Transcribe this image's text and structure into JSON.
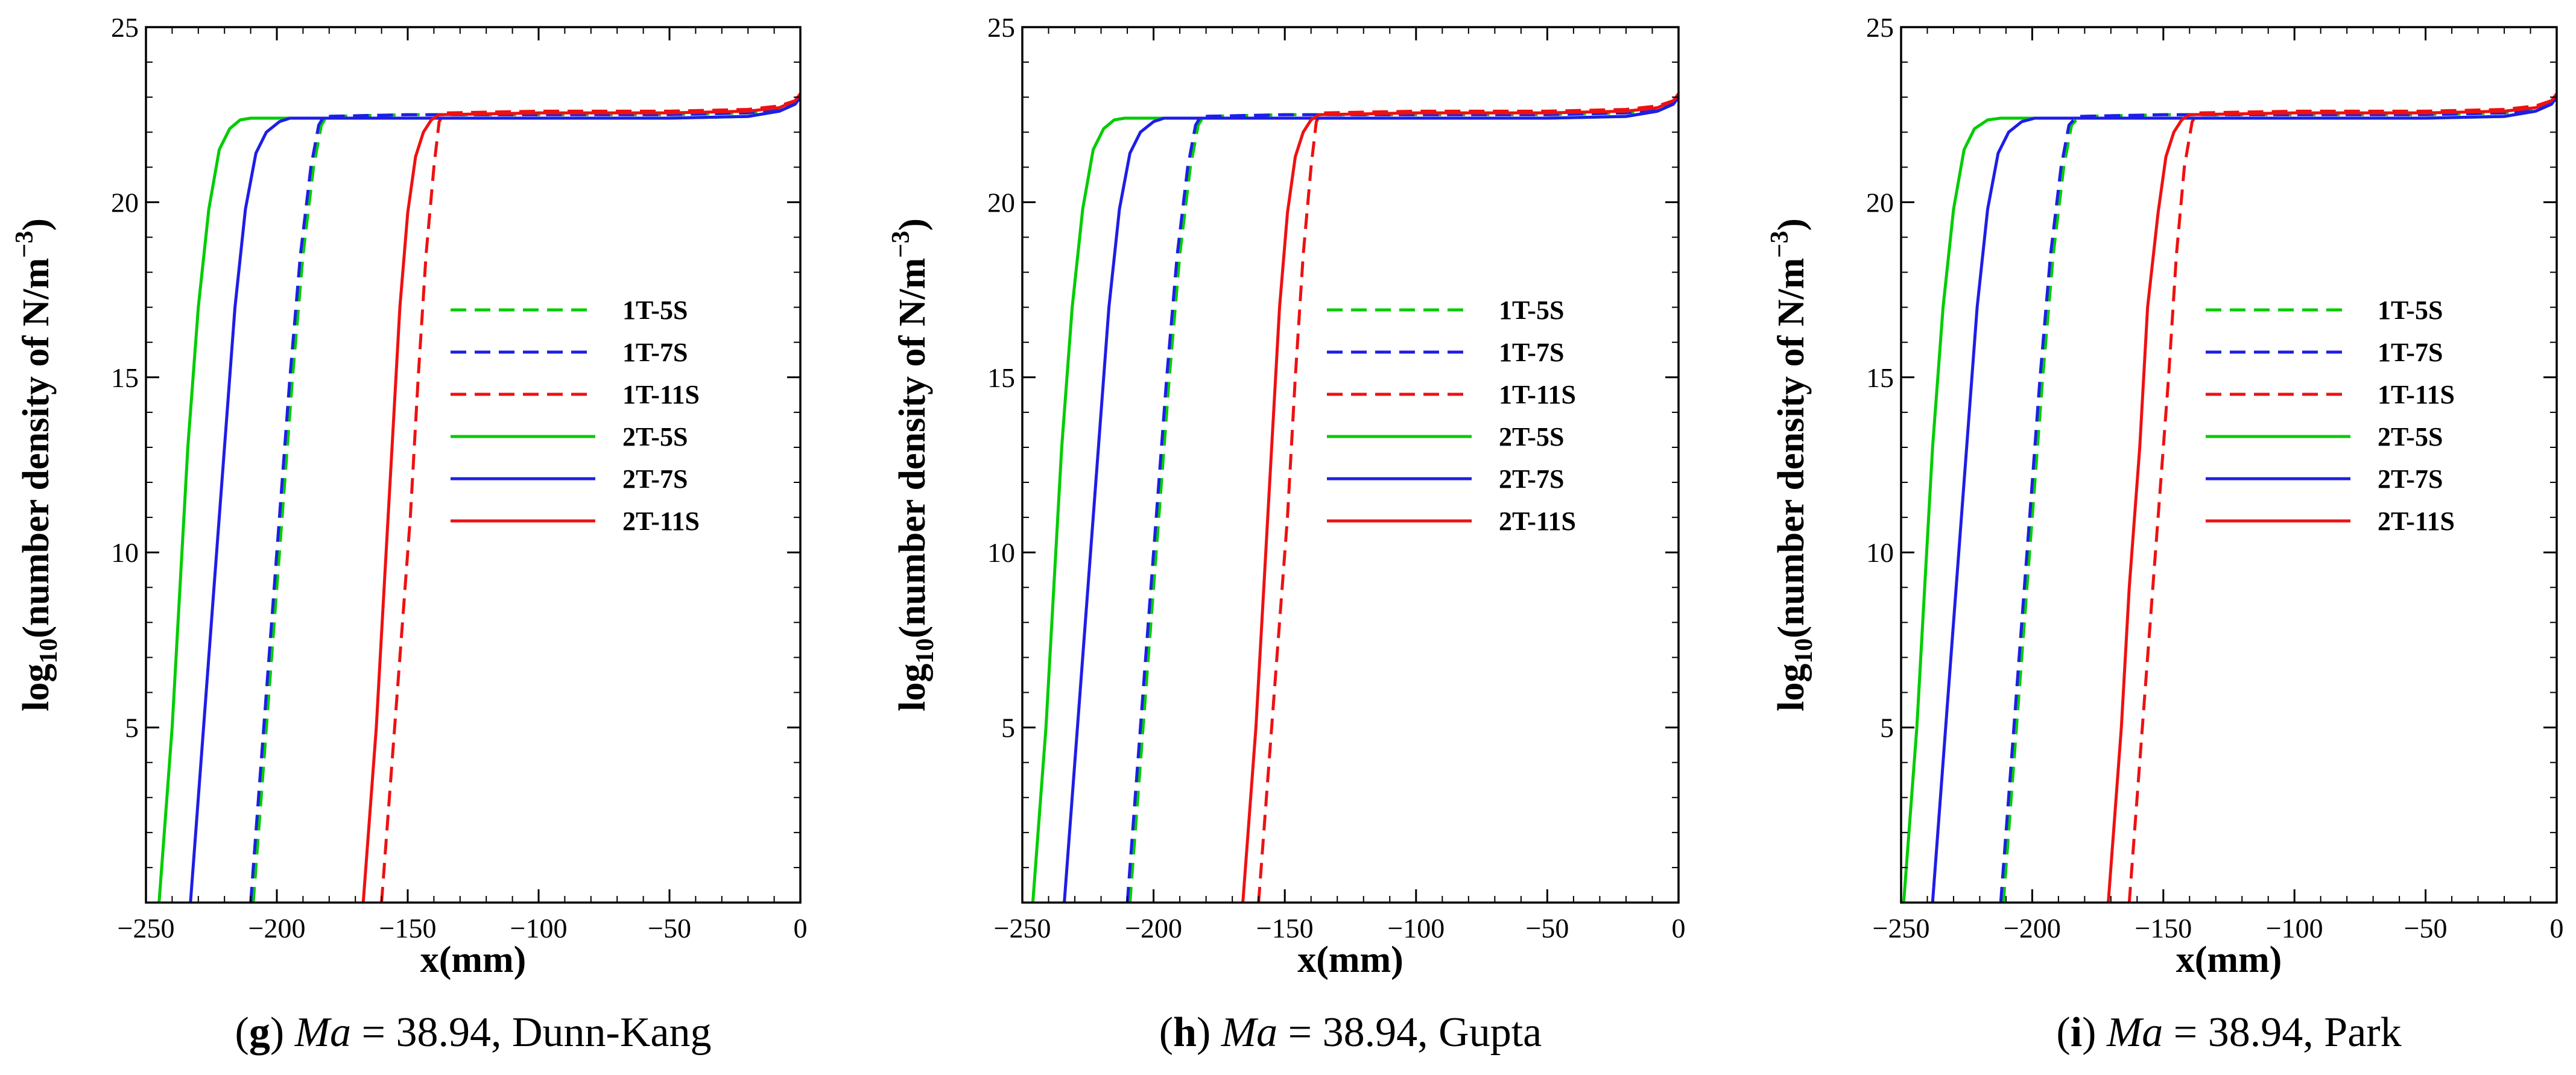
{
  "chart_data": [
    {
      "type": "line",
      "letter": "g",
      "caption_ma_symbol": "Ma",
      "caption_eq": " = 38.94, ",
      "caption_model": "Dunn-Kang",
      "xlabel": "x(mm)",
      "ylabel_prefix": "log",
      "ylabel_sub": "10",
      "ylabel_main": "(number density of N/m",
      "ylabel_sup": "−3",
      "ylabel_close": ")",
      "xlim": [
        -250,
        0
      ],
      "ylim": [
        0,
        25
      ],
      "xticks": [
        -250,
        -200,
        -150,
        -100,
        -50,
        0
      ],
      "xtick_labels": [
        "−250",
        "−200",
        "−150",
        "−100",
        "−50",
        "0"
      ],
      "yticks": [
        5,
        10,
        15,
        20,
        25
      ],
      "ytick_labels": [
        "5",
        "10",
        "15",
        "20",
        "25"
      ],
      "legend_position": "center-right",
      "series": [
        {
          "name": "1T-5S",
          "color": "#00cc00",
          "dash": "dashed",
          "x": [
            -209,
            -206,
            -202,
            -198,
            -194,
            -190,
            -186,
            -183,
            -181,
            -150,
            -100,
            -50,
            -20,
            -8,
            -2,
            0
          ],
          "y": [
            0,
            3,
            7,
            11,
            15,
            18.5,
            21,
            22.2,
            22.45,
            22.5,
            22.5,
            22.5,
            22.55,
            22.65,
            22.85,
            23.0
          ]
        },
        {
          "name": "1T-7S",
          "color": "#1e1ee6",
          "dash": "dashed",
          "x": [
            -210,
            -207,
            -203,
            -199,
            -195,
            -191,
            -187,
            -184,
            -182,
            -150,
            -100,
            -50,
            -20,
            -8,
            -2,
            0
          ],
          "y": [
            0,
            3,
            7,
            11,
            15,
            18.5,
            21,
            22.2,
            22.45,
            22.5,
            22.5,
            22.5,
            22.55,
            22.65,
            22.85,
            23.0
          ]
        },
        {
          "name": "1T-11S",
          "color": "#ee1111",
          "dash": "dashed",
          "x": [
            -160,
            -157,
            -153,
            -149,
            -146,
            -143,
            -140,
            -138,
            -136,
            -100,
            -50,
            -20,
            -8,
            -2,
            0
          ],
          "y": [
            0,
            3,
            7,
            11,
            15,
            18.5,
            21,
            22.3,
            22.55,
            22.6,
            22.6,
            22.65,
            22.75,
            22.9,
            23.1
          ]
        },
        {
          "name": "2T-5S",
          "color": "#00cc00",
          "dash": "solid",
          "x": [
            -245,
            -243,
            -240,
            -237,
            -234,
            -230,
            -226,
            -222,
            -218,
            -214,
            -210,
            -150,
            -100,
            -50,
            -20,
            -8,
            -2,
            0
          ],
          "y": [
            0,
            2,
            5,
            9,
            13,
            17,
            19.8,
            21.5,
            22.1,
            22.35,
            22.4,
            22.4,
            22.4,
            22.4,
            22.45,
            22.6,
            22.8,
            23.0
          ]
        },
        {
          "name": "2T-7S",
          "color": "#1e1ee6",
          "dash": "solid",
          "x": [
            -233,
            -231,
            -228,
            -224,
            -220,
            -216,
            -212,
            -208,
            -204,
            -199,
            -195,
            -150,
            -100,
            -50,
            -20,
            -8,
            -2,
            0
          ],
          "y": [
            0,
            2,
            5,
            9,
            13,
            17,
            19.8,
            21.4,
            22.0,
            22.3,
            22.4,
            22.4,
            22.4,
            22.4,
            22.45,
            22.6,
            22.8,
            23.0
          ]
        },
        {
          "name": "2T-11S",
          "color": "#ee1111",
          "dash": "solid",
          "x": [
            -167,
            -165,
            -162,
            -159,
            -156,
            -153,
            -150,
            -147,
            -144,
            -141,
            -138,
            -100,
            -50,
            -20,
            -8,
            -2,
            0
          ],
          "y": [
            0,
            2,
            5,
            9,
            13,
            17,
            19.7,
            21.3,
            22.0,
            22.35,
            22.5,
            22.55,
            22.55,
            22.6,
            22.7,
            22.9,
            23.1
          ]
        }
      ]
    },
    {
      "type": "line",
      "letter": "h",
      "caption_ma_symbol": "Ma",
      "caption_eq": " = 38.94, ",
      "caption_model": "Gupta",
      "xlabel": "x(mm)",
      "ylabel_prefix": "log",
      "ylabel_sub": "10",
      "ylabel_main": "(number density of N/m",
      "ylabel_sup": "−3",
      "ylabel_close": ")",
      "xlim": [
        -250,
        0
      ],
      "ylim": [
        0,
        25
      ],
      "xticks": [
        -250,
        -200,
        -150,
        -100,
        -50,
        0
      ],
      "xtick_labels": [
        "−250",
        "−200",
        "−150",
        "−100",
        "−50",
        "0"
      ],
      "yticks": [
        5,
        10,
        15,
        20,
        25
      ],
      "ytick_labels": [
        "5",
        "10",
        "15",
        "20",
        "25"
      ],
      "legend_position": "center-right",
      "series": [
        {
          "name": "1T-5S",
          "color": "#00cc00",
          "dash": "dashed",
          "x": [
            -209,
            -206,
            -202,
            -198,
            -194,
            -190,
            -186,
            -183,
            -181,
            -150,
            -100,
            -50,
            -20,
            -8,
            -2,
            0
          ],
          "y": [
            0,
            3,
            7,
            11,
            15,
            18.5,
            21,
            22.2,
            22.45,
            22.5,
            22.5,
            22.5,
            22.55,
            22.65,
            22.85,
            23.0
          ]
        },
        {
          "name": "1T-7S",
          "color": "#1e1ee6",
          "dash": "dashed",
          "x": [
            -210,
            -207,
            -203,
            -199,
            -195,
            -191,
            -187,
            -184,
            -182,
            -150,
            -100,
            -50,
            -20,
            -8,
            -2,
            0
          ],
          "y": [
            0,
            3,
            7,
            11,
            15,
            18.5,
            21,
            22.2,
            22.45,
            22.5,
            22.5,
            22.5,
            22.55,
            22.65,
            22.85,
            23.0
          ]
        },
        {
          "name": "1T-11S",
          "color": "#ee1111",
          "dash": "dashed",
          "x": [
            -160,
            -157,
            -153,
            -149,
            -146,
            -143,
            -140,
            -138,
            -136,
            -100,
            -50,
            -20,
            -8,
            -2,
            0
          ],
          "y": [
            0,
            3,
            7,
            11,
            15,
            18.5,
            21,
            22.3,
            22.55,
            22.6,
            22.6,
            22.65,
            22.75,
            22.9,
            23.1
          ]
        },
        {
          "name": "2T-5S",
          "color": "#00cc00",
          "dash": "solid",
          "x": [
            -246,
            -244,
            -241,
            -238,
            -235,
            -231,
            -227,
            -223,
            -219,
            -215,
            -211,
            -150,
            -100,
            -50,
            -20,
            -8,
            -2,
            0
          ],
          "y": [
            0,
            2,
            5,
            9,
            13,
            17,
            19.8,
            21.5,
            22.1,
            22.35,
            22.4,
            22.4,
            22.4,
            22.4,
            22.45,
            22.6,
            22.8,
            23.0
          ]
        },
        {
          "name": "2T-7S",
          "color": "#1e1ee6",
          "dash": "solid",
          "x": [
            -234,
            -232,
            -229,
            -225,
            -221,
            -217,
            -213,
            -209,
            -205,
            -200,
            -196,
            -150,
            -100,
            -50,
            -20,
            -8,
            -2,
            0
          ],
          "y": [
            0,
            2,
            5,
            9,
            13,
            17,
            19.8,
            21.4,
            22.0,
            22.3,
            22.4,
            22.4,
            22.4,
            22.4,
            22.45,
            22.6,
            22.8,
            23.0
          ]
        },
        {
          "name": "2T-11S",
          "color": "#ee1111",
          "dash": "solid",
          "x": [
            -166,
            -164,
            -161,
            -158,
            -155,
            -152,
            -149,
            -146,
            -143,
            -140,
            -137,
            -100,
            -50,
            -20,
            -8,
            -2,
            0
          ],
          "y": [
            0,
            2,
            5,
            9,
            13,
            17,
            19.7,
            21.3,
            22.0,
            22.35,
            22.5,
            22.55,
            22.55,
            22.6,
            22.7,
            22.9,
            23.1
          ]
        }
      ]
    },
    {
      "type": "line",
      "letter": "i",
      "caption_ma_symbol": "Ma",
      "caption_eq": " = 38.94, ",
      "caption_model": "Park",
      "xlabel": "x(mm)",
      "ylabel_prefix": "log",
      "ylabel_sub": "10",
      "ylabel_main": "(number density of N/m",
      "ylabel_sup": "−3",
      "ylabel_close": ")",
      "xlim": [
        -250,
        0
      ],
      "ylim": [
        0,
        25
      ],
      "xticks": [
        -250,
        -200,
        -150,
        -100,
        -50,
        0
      ],
      "xtick_labels": [
        "−250",
        "−200",
        "−150",
        "−100",
        "−50",
        "0"
      ],
      "yticks": [
        5,
        10,
        15,
        20,
        25
      ],
      "ytick_labels": [
        "5",
        "10",
        "15",
        "20",
        "25"
      ],
      "legend_position": "center-right",
      "series": [
        {
          "name": "1T-5S",
          "color": "#00cc00",
          "dash": "dashed",
          "x": [
            -211,
            -208,
            -204,
            -200,
            -196,
            -192,
            -188,
            -185,
            -182,
            -150,
            -100,
            -50,
            -20,
            -8,
            -2,
            0
          ],
          "y": [
            0,
            3,
            7,
            11,
            15,
            18.5,
            21,
            22.2,
            22.45,
            22.5,
            22.5,
            22.5,
            22.55,
            22.65,
            22.85,
            23.0
          ]
        },
        {
          "name": "1T-7S",
          "color": "#1e1ee6",
          "dash": "dashed",
          "x": [
            -212,
            -209,
            -205,
            -201,
            -197,
            -193,
            -189,
            -186,
            -183,
            -150,
            -100,
            -50,
            -20,
            -8,
            -2,
            0
          ],
          "y": [
            0,
            3,
            7,
            11,
            15,
            18.5,
            21,
            22.2,
            22.45,
            22.5,
            22.5,
            22.5,
            22.55,
            22.65,
            22.85,
            23.0
          ]
        },
        {
          "name": "1T-11S",
          "color": "#ee1111",
          "dash": "dashed",
          "x": [
            -163,
            -160,
            -156,
            -152,
            -148,
            -145,
            -142,
            -139,
            -137,
            -100,
            -50,
            -20,
            -8,
            -2,
            0
          ],
          "y": [
            0,
            3,
            7,
            11,
            15,
            18.5,
            21,
            22.3,
            22.55,
            22.6,
            22.6,
            22.65,
            22.75,
            22.9,
            23.1
          ]
        },
        {
          "name": "2T-5S",
          "color": "#00cc00",
          "dash": "solid",
          "x": [
            -249,
            -247,
            -244,
            -241,
            -238,
            -234,
            -230,
            -226,
            -222,
            -217,
            -212,
            -150,
            -100,
            -50,
            -20,
            -8,
            -2,
            0
          ],
          "y": [
            0,
            2,
            5,
            9,
            13,
            17,
            19.8,
            21.5,
            22.1,
            22.35,
            22.4,
            22.4,
            22.4,
            22.4,
            22.45,
            22.6,
            22.8,
            23.0
          ]
        },
        {
          "name": "2T-7S",
          "color": "#1e1ee6",
          "dash": "solid",
          "x": [
            -238,
            -236,
            -233,
            -229,
            -225,
            -221,
            -217,
            -213,
            -209,
            -204,
            -199,
            -150,
            -100,
            -50,
            -20,
            -8,
            -2,
            0
          ],
          "y": [
            0,
            2,
            5,
            9,
            13,
            17,
            19.8,
            21.4,
            22.0,
            22.3,
            22.4,
            22.4,
            22.4,
            22.4,
            22.45,
            22.6,
            22.8,
            23.0
          ]
        },
        {
          "name": "2T-11S",
          "color": "#ee1111",
          "dash": "solid",
          "x": [
            -171,
            -169,
            -166,
            -163,
            -159,
            -156,
            -152,
            -149,
            -146,
            -143,
            -140,
            -100,
            -50,
            -20,
            -8,
            -2,
            0
          ],
          "y": [
            0,
            2,
            5,
            9,
            13,
            17,
            19.7,
            21.3,
            22.0,
            22.35,
            22.5,
            22.55,
            22.55,
            22.6,
            22.7,
            22.9,
            23.1
          ]
        }
      ]
    }
  ]
}
